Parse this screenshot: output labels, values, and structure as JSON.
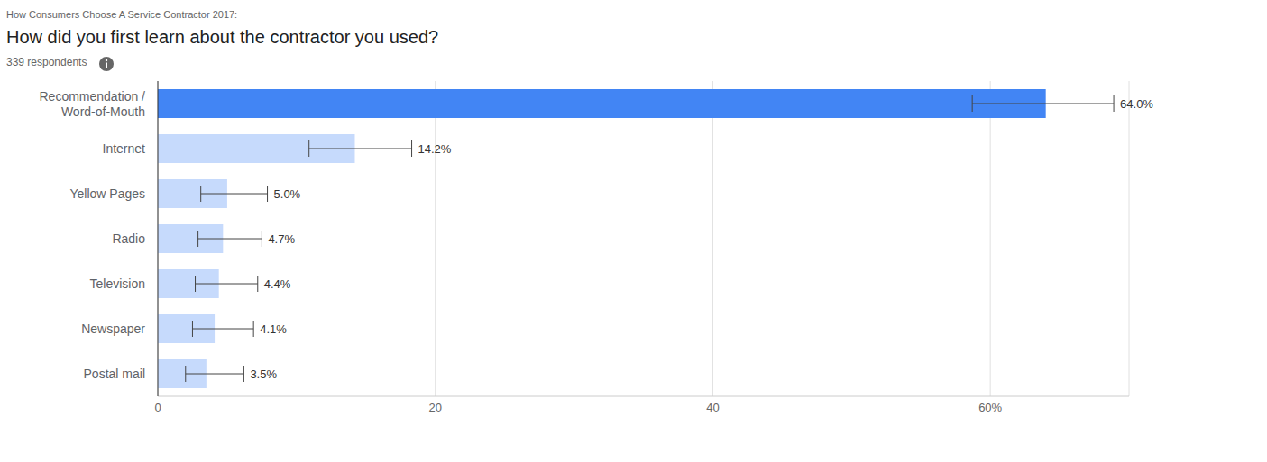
{
  "chart_data": {
    "type": "bar",
    "header": "How Consumers Choose A Service Contractor 2017:",
    "title": "How did you first learn about the contractor you used?",
    "subtitle": "339 respondents",
    "orientation": "horizontal",
    "categories": [
      "Recommendation / Word-of-Mouth",
      "Internet",
      "Yellow Pages",
      "Radio",
      "Television",
      "Newspaper",
      "Postal mail"
    ],
    "values": [
      64.0,
      14.2,
      5.0,
      4.7,
      4.4,
      4.1,
      3.5
    ],
    "value_labels": [
      "64.0%",
      "14.2%",
      "5.0%",
      "4.7%",
      "4.4%",
      "4.1%",
      "3.5%"
    ],
    "error_minus": [
      5.3,
      3.3,
      1.9,
      1.8,
      1.7,
      1.6,
      1.5
    ],
    "error_plus": [
      4.9,
      4.1,
      2.9,
      2.8,
      2.8,
      2.8,
      2.7
    ],
    "colors": [
      "#4285f4",
      "#c6dafc",
      "#c6dafc",
      "#c6dafc",
      "#c6dafc",
      "#c6dafc",
      "#c6dafc"
    ],
    "xlim": [
      0,
      70
    ],
    "xticks": [
      0,
      20,
      40,
      {
        "value": 60,
        "label": "60%"
      }
    ],
    "grid": true,
    "data_labels": true
  }
}
